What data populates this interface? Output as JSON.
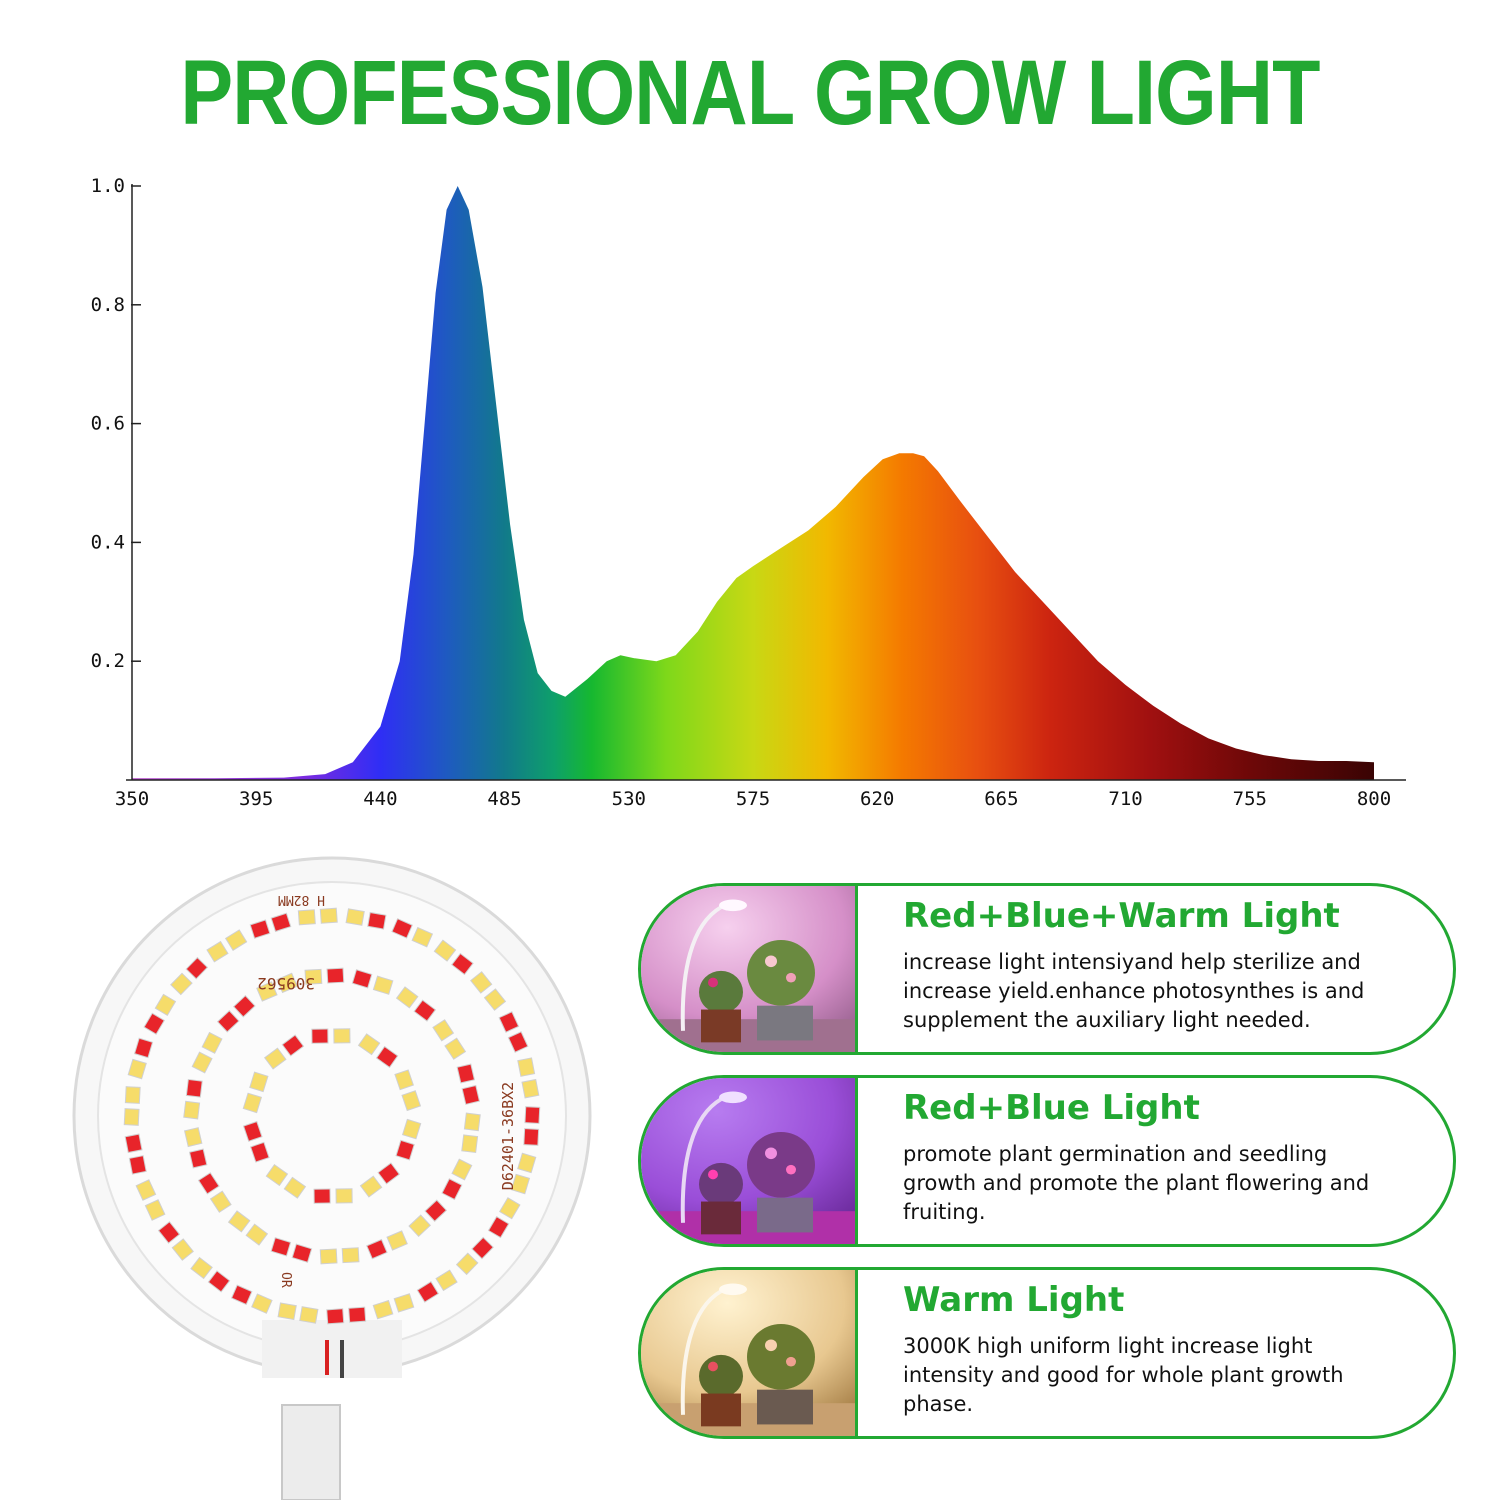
{
  "headline": "PROFESSIONAL GROW LIGHT",
  "chart_data": {
    "type": "area",
    "title": "",
    "xlabel": "",
    "ylabel": "",
    "xlim": [
      350,
      800
    ],
    "ylim": [
      0,
      1.0
    ],
    "x_ticks": [
      350,
      395,
      440,
      485,
      530,
      575,
      620,
      665,
      710,
      755,
      800
    ],
    "y_ticks": [
      0.2,
      0.4,
      0.6,
      0.8,
      1.0
    ],
    "y_tick_labels": [
      "0.2",
      "0.4",
      "0.6",
      "0.8",
      "1.0"
    ],
    "fill": "visible-spectrum gradient",
    "series": [
      {
        "x": [
          350,
          380,
          405,
          420,
          430,
          440,
          447,
          452,
          456,
          460,
          464,
          468,
          472,
          477,
          482,
          487,
          492,
          497,
          502,
          507,
          515,
          522,
          527,
          532,
          540,
          547,
          555,
          562,
          569,
          575,
          585,
          595,
          605,
          615,
          622,
          628,
          633,
          637,
          642,
          650,
          660,
          670,
          680,
          690,
          700,
          710,
          720,
          730,
          740,
          750,
          760,
          770,
          780,
          790,
          800
        ],
        "y": [
          0.003,
          0.003,
          0.004,
          0.01,
          0.03,
          0.09,
          0.2,
          0.38,
          0.6,
          0.82,
          0.96,
          1.0,
          0.96,
          0.83,
          0.63,
          0.43,
          0.27,
          0.18,
          0.15,
          0.14,
          0.17,
          0.2,
          0.21,
          0.205,
          0.2,
          0.21,
          0.25,
          0.3,
          0.34,
          0.36,
          0.39,
          0.42,
          0.46,
          0.51,
          0.54,
          0.55,
          0.55,
          0.545,
          0.52,
          0.47,
          0.41,
          0.35,
          0.3,
          0.25,
          0.2,
          0.16,
          0.125,
          0.095,
          0.07,
          0.053,
          0.042,
          0.035,
          0.032,
          0.032,
          0.03
        ]
      }
    ]
  },
  "cards": [
    {
      "title": "Red+Blue+Warm Light",
      "desc": "increase light intensiyand help sterilize and increase yield.enhance photosynthes is and supplement the auxiliary light needed."
    },
    {
      "title": "Red+Blue Light",
      "desc": "promote plant germination and seedling growth and promote the plant flowering and fruiting."
    },
    {
      "title": "Warm Light",
      "desc": "3000K high uniform light increase light intensity and good for whole plant growth phase."
    }
  ],
  "led_panel": {
    "markings": [
      "H 82MM",
      "309562",
      "D62401-36BX2",
      "OR"
    ]
  },
  "colors": {
    "brand_green": "#22a832",
    "led_red": "#e8242a",
    "led_warm": "#f6dc6a",
    "pcb": "#f4f4f4"
  },
  "icons": [
    "led-panel-photo",
    "lamp-photo-red-blue-warm",
    "lamp-photo-red-blue",
    "lamp-photo-warm"
  ]
}
